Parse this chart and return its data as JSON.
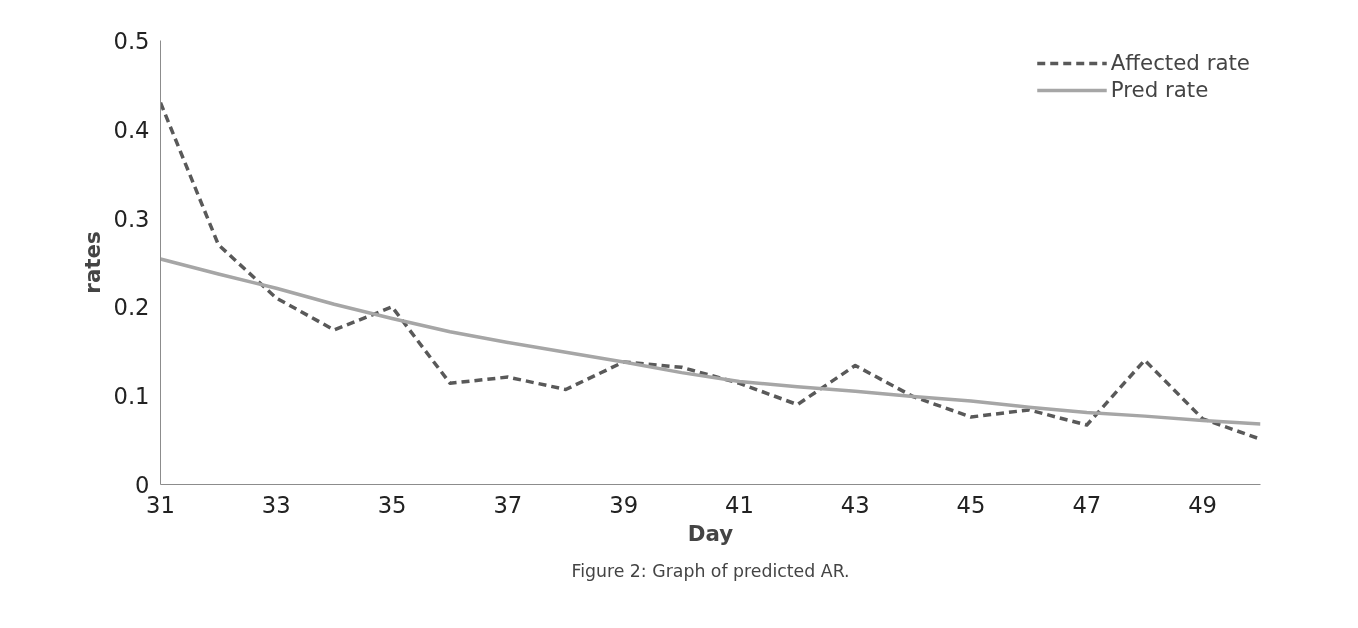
{
  "chart_data": {
    "type": "line",
    "xlabel": "Day",
    "ylabel": "rates",
    "x": [
      31,
      32,
      33,
      34,
      35,
      36,
      37,
      38,
      39,
      40,
      41,
      42,
      43,
      44,
      45,
      46,
      47,
      48,
      49,
      50
    ],
    "series": [
      {
        "name": "Affected rate",
        "color": "#595959",
        "line_style": "dashed",
        "values": [
          0.43,
          0.27,
          0.21,
          0.174,
          0.2,
          0.114,
          0.121,
          0.107,
          0.138,
          0.132,
          0.114,
          0.09,
          0.134,
          0.099,
          0.076,
          0.084,
          0.067,
          0.14,
          0.074,
          0.051
        ]
      },
      {
        "name": "Pred rate",
        "color": "#a6a6a6",
        "line_style": "solid",
        "values": [
          0.254,
          0.237,
          0.221,
          0.203,
          0.187,
          0.172,
          0.16,
          0.149,
          0.138,
          0.126,
          0.116,
          0.11,
          0.105,
          0.099,
          0.094,
          0.087,
          0.081,
          0.077,
          0.072,
          0.068
        ]
      }
    ],
    "xlim": [
      31,
      50
    ],
    "ylim": [
      0,
      0.5
    ],
    "xticks": [
      31,
      33,
      35,
      37,
      39,
      41,
      43,
      45,
      47,
      49
    ],
    "yticks": [
      0,
      0.1,
      0.2,
      0.3,
      0.4,
      0.5
    ],
    "grid": false,
    "legend": "top right",
    "marker": "none",
    "annotations": [
      "Figure 2: Graph of predicted AR."
    ]
  }
}
